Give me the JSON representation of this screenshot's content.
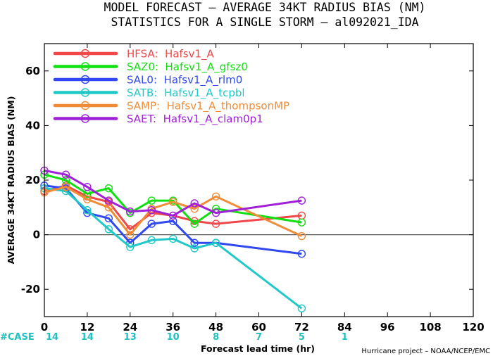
{
  "chart_data": {
    "type": "line",
    "title": "MODEL FORECAST – AVERAGE 34KT RADIUS BIAS (NM)",
    "subtitle": "STATISTICS FOR A SINGLE STORM – al092021_IDA",
    "xlabel": "Forecast lead time (hr)",
    "ylabel": "AVERAGE 34KT RADIUS BIAS (NM)",
    "xlim": [
      0,
      120
    ],
    "ylim": [
      -30,
      70
    ],
    "x_ticks": [
      0,
      12,
      24,
      36,
      48,
      60,
      72,
      84,
      96,
      108,
      120
    ],
    "y_ticks": [
      -20,
      0,
      20,
      40,
      60
    ],
    "zero_line": true,
    "legend_position": "top-left",
    "credit": "Hurricane project – NOAA/NCEP/EMC",
    "case_label": "#CASE",
    "case_counts": [
      {
        "x": 0,
        "n": "14"
      },
      {
        "x": 12,
        "n": "14"
      },
      {
        "x": 24,
        "n": "13"
      },
      {
        "x": 36,
        "n": "10"
      },
      {
        "x": 48,
        "n": "8"
      },
      {
        "x": 60,
        "n": "7"
      },
      {
        "x": 72,
        "n": "5"
      },
      {
        "x": 84,
        "n": "1"
      }
    ],
    "series": [
      {
        "name": "HFSA:  Hafsv1_A",
        "color": "#f04848",
        "x": [
          0,
          6,
          12,
          18,
          24,
          30,
          36,
          42,
          48,
          72
        ],
        "y": [
          16,
          18,
          14,
          12,
          2,
          8,
          7,
          5,
          4,
          7
        ]
      },
      {
        "name": "SAZ0:  Hafsv1_A_gfsz0",
        "color": "#10e010",
        "x": [
          0,
          6,
          12,
          18,
          24,
          30,
          36,
          42,
          48,
          72
        ],
        "y": [
          22,
          20,
          15,
          17,
          8,
          12.5,
          12.5,
          4,
          9.5,
          4.5
        ]
      },
      {
        "name": "SAL0:  Hafsv1_A_rlm0",
        "color": "#3048f0",
        "x": [
          0,
          6,
          12,
          18,
          24,
          30,
          36,
          42,
          48,
          72
        ],
        "y": [
          18,
          17,
          8,
          6,
          -3,
          4,
          5,
          -3,
          -3,
          -7
        ]
      },
      {
        "name": "SATB:  Hafsv1_A_tcpbl",
        "color": "#20c8c8",
        "x": [
          0,
          6,
          12,
          18,
          24,
          30,
          36,
          42,
          48,
          72
        ],
        "y": [
          17,
          16,
          9,
          2,
          -4.5,
          -2,
          -1.5,
          -5,
          -3,
          -27
        ]
      },
      {
        "name": "SAMP:  Hafsv1_A_thompsonMP",
        "color": "#f08c38",
        "x": [
          0,
          6,
          12,
          18,
          24,
          30,
          36,
          42,
          48,
          72
        ],
        "y": [
          15.5,
          17.5,
          13,
          10,
          0,
          9.5,
          12,
          9.5,
          14,
          -0.5
        ]
      },
      {
        "name": "SAET:  Hafsv1_A_clam0p1",
        "color": "#a020d8",
        "x": [
          0,
          6,
          12,
          18,
          24,
          30,
          36,
          42,
          48,
          72
        ],
        "y": [
          23.5,
          22,
          17.5,
          12.5,
          8.5,
          9,
          7,
          11.5,
          8,
          12.5
        ]
      }
    ]
  }
}
